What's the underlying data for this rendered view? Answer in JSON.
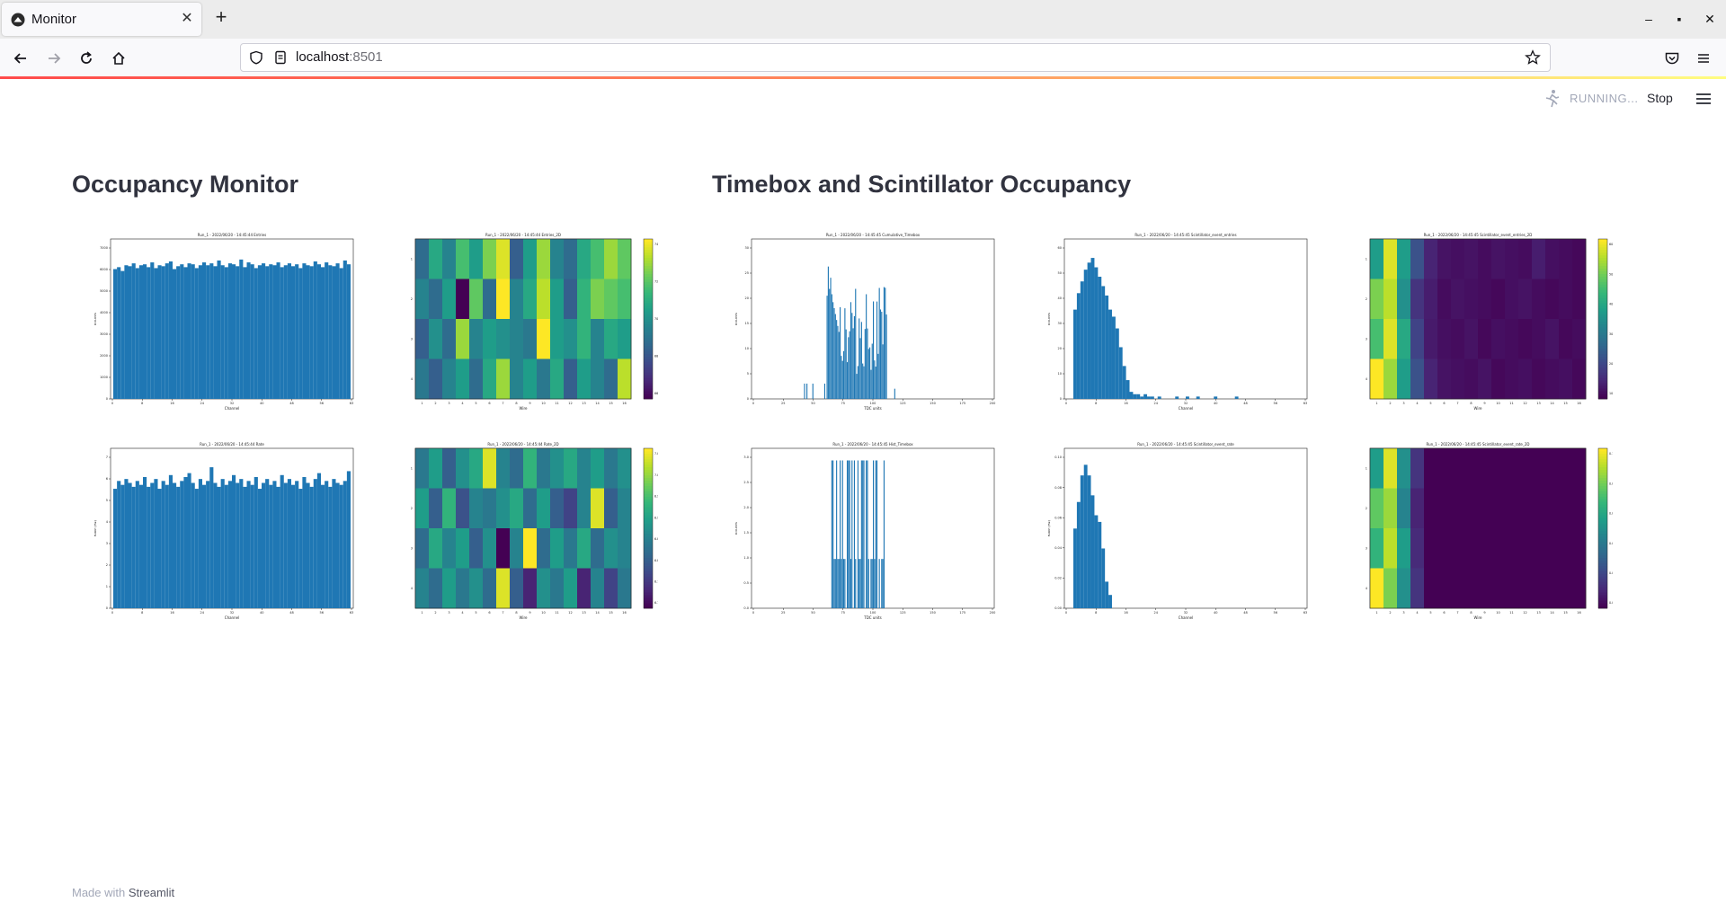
{
  "browser": {
    "tab_title": "Monitor",
    "new_tab_icon": "plus-icon",
    "url_host": "localhost",
    "url_port": ":8501"
  },
  "app": {
    "status": "RUNNING...",
    "stop_label": "Stop",
    "footer_prefix": "Made with",
    "footer_brand": "Streamlit"
  },
  "columns": {
    "left_title": "Occupancy Monitor",
    "right_title": "Timebox and Scintillator Occupancy"
  },
  "colors": {
    "bar": "#1f77b4",
    "accent_red": "#ff4b4b",
    "text": "#31333f"
  },
  "chart_data": [
    {
      "id": "entries",
      "type": "bar",
      "title": "Run_1 - 2022/06/20 - 14:45:44 Entries",
      "xlabel": "Channel",
      "ylabel": "Entries",
      "xticks": [
        "0",
        "8",
        "16",
        "24",
        "32",
        "40",
        "48",
        "56",
        "63"
      ],
      "yticks": [
        "0",
        "1000",
        "2000",
        "3000",
        "4000",
        "5000",
        "6000",
        "7000"
      ],
      "ylim": [
        0,
        8000
      ],
      "values": [
        6800,
        6900,
        6700,
        7000,
        6950,
        7100,
        6850,
        7000,
        7050,
        6900,
        7150,
        6850,
        7000,
        6950,
        7100,
        7200,
        6800,
        6950,
        7050,
        6900,
        7100,
        7050,
        6850,
        7000,
        7150,
        7000,
        7100,
        6950,
        7250,
        7000,
        6900,
        7100,
        7050,
        6950,
        7300,
        6900,
        7150,
        7050,
        6850,
        7000,
        7100,
        6950,
        7050,
        7000,
        7150,
        6900,
        7000,
        7100,
        6950,
        7050,
        6850,
        7100,
        7000,
        6950,
        7200,
        7050,
        6900,
        7150,
        7000,
        6950,
        7100,
        6850,
        7250,
        7050
      ]
    },
    {
      "id": "entries_2d",
      "type": "heatmap",
      "title": "Run_1 - 2022/06/20 - 14:45:44 Entries_2D",
      "xlabel": "Wire",
      "ylabel": "Layer",
      "xticks": [
        "1",
        "2",
        "3",
        "4",
        "5",
        "6",
        "7",
        "8",
        "9",
        "10",
        "11",
        "12",
        "13",
        "14",
        "15",
        "16"
      ],
      "yticks": [
        "1",
        "2",
        "3",
        "4"
      ],
      "colorbar_ticks": [
        "6600",
        "6800",
        "7000",
        "7200",
        "7400"
      ],
      "rows": [
        [
          0.35,
          0.6,
          0.45,
          0.7,
          0.55,
          0.8,
          0.95,
          0.3,
          0.55,
          0.85,
          0.45,
          0.35,
          0.6,
          0.7,
          0.85,
          0.75
        ],
        [
          0.45,
          0.35,
          0.55,
          0.0,
          0.75,
          0.35,
          1.0,
          0.45,
          0.6,
          0.9,
          0.55,
          0.3,
          0.65,
          0.8,
          0.75,
          0.7
        ],
        [
          0.3,
          0.5,
          0.35,
          0.85,
          0.45,
          0.55,
          0.5,
          0.45,
          0.4,
          1.0,
          0.55,
          0.5,
          0.65,
          0.45,
          0.6,
          0.55
        ],
        [
          0.4,
          0.3,
          0.45,
          0.55,
          0.35,
          0.6,
          0.85,
          0.45,
          0.55,
          0.4,
          0.6,
          0.3,
          0.55,
          0.45,
          0.35,
          0.9
        ]
      ]
    },
    {
      "id": "cumulative_timebox",
      "type": "bar",
      "title": "Run_1 - 2022/06/20 - 14:45:45 Cumulative_Timebox",
      "xlabel": "TDC units",
      "ylabel": "Entries",
      "xticks": [
        "0",
        "25",
        "50",
        "75",
        "100",
        "125",
        "150",
        "175",
        "200"
      ],
      "yticks": [
        "0",
        "5",
        "10",
        "15",
        "20",
        "25",
        "30"
      ],
      "ylim": [
        0,
        30
      ]
    },
    {
      "id": "scint_entries",
      "type": "bar",
      "title": "Run_1 - 2022/06/20 - 14:45:45 Scintillator_event_entries",
      "xlabel": "Channel",
      "ylabel": "Entries",
      "xticks": [
        "0",
        "8",
        "16",
        "24",
        "32",
        "40",
        "48",
        "56",
        "63"
      ],
      "yticks": [
        "0",
        "10",
        "20",
        "30",
        "40",
        "50",
        "60"
      ],
      "ylim": [
        0,
        65
      ]
    },
    {
      "id": "scint_entries_2d",
      "type": "heatmap",
      "title": "Run_1 - 2022/06/20 - 14:45:45 Scintillator_event_entries_2D",
      "xlabel": "Wire",
      "ylabel": "Layer",
      "xticks": [
        "1",
        "2",
        "3",
        "4",
        "5",
        "6",
        "7",
        "8",
        "9",
        "10",
        "11",
        "12",
        "13",
        "14",
        "15",
        "16"
      ],
      "yticks": [
        "1",
        "2",
        "3",
        "4"
      ],
      "colorbar_ticks": [
        "10",
        "20",
        "30",
        "40",
        "50",
        "60"
      ],
      "rows": [
        [
          0.55,
          0.95,
          0.55,
          0.25,
          0.1,
          0.05,
          0.04,
          0.05,
          0.03,
          0.05,
          0.04,
          0.03,
          0.08,
          0.04,
          0.03,
          0.02
        ],
        [
          0.8,
          0.9,
          0.5,
          0.15,
          0.08,
          0.03,
          0.05,
          0.04,
          0.03,
          0.02,
          0.04,
          0.05,
          0.03,
          0.02,
          0.03,
          0.02
        ],
        [
          0.7,
          0.95,
          0.6,
          0.2,
          0.07,
          0.04,
          0.03,
          0.05,
          0.02,
          0.04,
          0.03,
          0.02,
          0.03,
          0.05,
          0.02,
          0.03
        ],
        [
          1.0,
          0.85,
          0.55,
          0.25,
          0.1,
          0.05,
          0.04,
          0.03,
          0.05,
          0.02,
          0.03,
          0.04,
          0.02,
          0.03,
          0.04,
          0.02
        ]
      ]
    },
    {
      "id": "rate",
      "type": "bar",
      "title": "Run_1 - 2022/06/20 - 14:45:44 Rate",
      "xlabel": "Channel",
      "ylabel": "Rate (Hz)",
      "xticks": [
        "0",
        "8",
        "16",
        "24",
        "32",
        "40",
        "48",
        "56",
        "63"
      ],
      "yticks": [
        "0",
        "1",
        "2",
        "3",
        "4",
        "5",
        "6",
        "7"
      ],
      "ylim": [
        0,
        7.8
      ],
      "values": [
        6.1,
        6.5,
        6.3,
        6.6,
        6.4,
        6.2,
        6.5,
        6.3,
        6.7,
        6.2,
        6.4,
        6.6,
        6.1,
        6.5,
        6.3,
        6.8,
        6.4,
        6.2,
        6.5,
        6.7,
        6.9,
        6.4,
        6.1,
        6.6,
        6.3,
        6.5,
        7.2,
        6.4,
        6.2,
        6.6,
        6.3,
        6.5,
        6.8,
        6.4,
        6.6,
        6.2,
        6.5,
        6.3,
        6.7,
        6.1,
        6.4,
        6.6,
        6.3,
        6.5,
        6.2,
        6.8,
        6.4,
        6.6,
        6.3,
        6.5,
        6.1,
        6.7,
        6.4,
        6.2,
        6.6,
        6.9,
        6.3,
        6.5,
        6.2,
        6.6,
        6.4,
        6.3,
        6.5,
        7.0
      ]
    },
    {
      "id": "rate_2d",
      "type": "heatmap",
      "title": "Run_1 - 2022/06/20 - 14:45:44 Rate_2D",
      "xlabel": "Wire",
      "ylabel": "Layer",
      "xticks": [
        "1",
        "2",
        "3",
        "4",
        "5",
        "6",
        "7",
        "8",
        "9",
        "10",
        "11",
        "12",
        "13",
        "14",
        "15",
        "16"
      ],
      "yticks": [
        "1",
        "2",
        "3",
        "4"
      ],
      "colorbar_ticks": [
        "6.70",
        "6.75",
        "6.80",
        "6.85",
        "6.90",
        "6.95",
        "7.00",
        "7.05"
      ],
      "rows": [
        [
          0.4,
          0.55,
          0.3,
          0.5,
          0.6,
          0.95,
          0.45,
          0.35,
          0.65,
          0.4,
          0.5,
          0.6,
          0.45,
          0.55,
          0.4,
          0.5
        ],
        [
          0.55,
          0.3,
          0.65,
          0.25,
          0.45,
          0.4,
          0.5,
          0.6,
          0.35,
          0.55,
          0.3,
          0.2,
          0.45,
          0.95,
          0.3,
          0.45
        ],
        [
          0.35,
          0.6,
          0.45,
          0.55,
          0.3,
          0.5,
          0.0,
          0.45,
          1.0,
          0.35,
          0.55,
          0.4,
          0.6,
          0.35,
          0.5,
          0.45
        ],
        [
          0.45,
          0.35,
          0.55,
          0.4,
          0.5,
          0.35,
          0.95,
          0.3,
          0.1,
          0.5,
          0.4,
          0.55,
          0.1,
          0.45,
          0.2,
          0.4
        ]
      ]
    },
    {
      "id": "hist_timebox",
      "type": "bar",
      "title": "Run_1 - 2022/06/20 - 14:45:45 Hist_Timebox",
      "xlabel": "TDC units",
      "ylabel": "Entries",
      "xticks": [
        "0",
        "25",
        "50",
        "75",
        "100",
        "125",
        "150",
        "175",
        "200"
      ],
      "yticks": [
        "0.0",
        "0.5",
        "1.0",
        "1.5",
        "2.0",
        "2.5",
        "3.0"
      ],
      "ylim": [
        0,
        3.1
      ]
    },
    {
      "id": "scint_rate",
      "type": "bar",
      "title": "Run_1 - 2022/06/20 - 14:45:45 Scintillator_event_rate",
      "xlabel": "Channel",
      "ylabel": "Rate (Hz)",
      "xticks": [
        "0",
        "8",
        "16",
        "24",
        "32",
        "40",
        "48",
        "56",
        "63"
      ],
      "yticks": [
        "0.00",
        "0.02",
        "0.04",
        "0.06",
        "0.08",
        "0.10"
      ],
      "ylim": [
        0,
        0.115
      ]
    },
    {
      "id": "scint_rate_2d",
      "type": "heatmap",
      "title": "Run_1 - 2022/06/20 - 14:45:45 Scintillator_event_rate_2D",
      "xlabel": "Wire",
      "ylabel": "Layer",
      "xticks": [
        "1",
        "2",
        "3",
        "4",
        "5",
        "6",
        "7",
        "8",
        "9",
        "10",
        "11",
        "12",
        "13",
        "14",
        "15",
        "16"
      ],
      "yticks": [
        "1",
        "2",
        "3",
        "4"
      ],
      "colorbar_ticks": [
        "0.00",
        "0.02",
        "0.04",
        "0.06",
        "0.08",
        "0.10"
      ],
      "rows": [
        [
          0.55,
          0.95,
          0.5,
          0.15,
          0,
          0,
          0,
          0,
          0,
          0,
          0,
          0,
          0,
          0,
          0,
          0
        ],
        [
          0.75,
          0.85,
          0.45,
          0.1,
          0,
          0,
          0,
          0,
          0,
          0,
          0,
          0,
          0,
          0,
          0,
          0
        ],
        [
          0.65,
          0.9,
          0.55,
          0.12,
          0,
          0,
          0,
          0,
          0,
          0,
          0,
          0,
          0,
          0,
          0,
          0
        ],
        [
          1.0,
          0.8,
          0.5,
          0.15,
          0,
          0,
          0,
          0,
          0,
          0,
          0,
          0,
          0,
          0,
          0,
          0
        ]
      ]
    }
  ]
}
